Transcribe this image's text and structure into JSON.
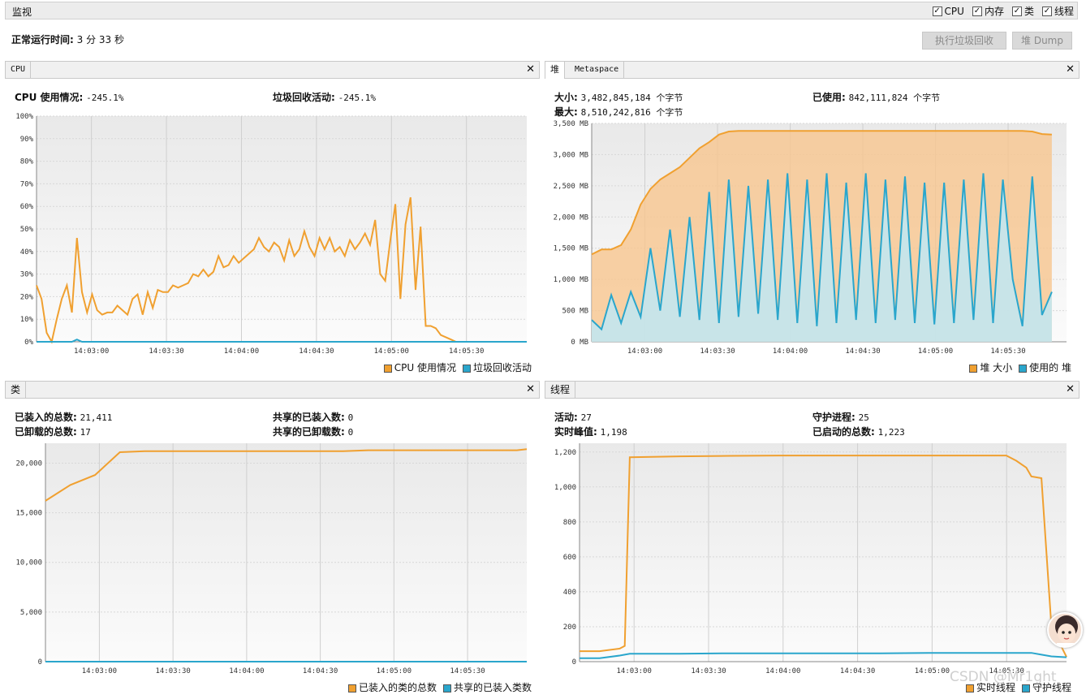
{
  "header": {
    "title": "监视",
    "checkboxes": [
      {
        "label": "CPU",
        "checked": true
      },
      {
        "label": "内存",
        "checked": true
      },
      {
        "label": "类",
        "checked": true
      },
      {
        "label": "线程",
        "checked": true
      }
    ]
  },
  "uptime": {
    "label": "正常运行时间:",
    "value": "3 分 33 秒"
  },
  "buttons": {
    "gc": "执行垃圾回收",
    "dump": "堆 Dump"
  },
  "colors": {
    "orange": "#f0a030",
    "blue": "#2aa6cc",
    "orange_fill": "#f7c58f",
    "blue_fill": "#bfe7f5"
  },
  "cpu": {
    "tab": "CPU",
    "usage_label": "CPU 使用情况:",
    "usage_value": "-245.1%",
    "gc_label": "垃圾回收活动:",
    "gc_value": "-245.1%",
    "y_ticks": [
      "0%",
      "10%",
      "20%",
      "30%",
      "40%",
      "50%",
      "60%",
      "70%",
      "80%",
      "90%",
      "100%"
    ],
    "x_ticks": [
      "14:03:00",
      "14:03:30",
      "14:04:00",
      "14:04:30",
      "14:05:00",
      "14:05:30"
    ],
    "legend": [
      "CPU 使用情况",
      "垃圾回收活动"
    ]
  },
  "heap": {
    "tab": "堆",
    "tab2": "Metaspace",
    "size_label": "大小:",
    "size_value": "3,482,845,184 个字节",
    "used_label": "已使用:",
    "used_value": "842,111,824 个字节",
    "max_label": "最大:",
    "max_value": "8,510,242,816 个字节",
    "y_ticks": [
      "0 MB",
      "500 MB",
      "1,000 MB",
      "1,500 MB",
      "2,000 MB",
      "2,500 MB",
      "3,000 MB",
      "3,500 MB"
    ],
    "x_ticks": [
      "14:03:00",
      "14:03:30",
      "14:04:00",
      "14:04:30",
      "14:05:00",
      "14:05:30"
    ],
    "legend": [
      "堆 大小",
      "使用的 堆"
    ]
  },
  "classes": {
    "tab": "类",
    "loaded_label": "已装入的总数:",
    "loaded_value": "21,411",
    "unloaded_label": "已卸载的总数:",
    "unloaded_value": "17",
    "shared_loaded_label": "共享的已装入数:",
    "shared_loaded_value": "0",
    "shared_unloaded_label": "共享的已卸载数:",
    "shared_unloaded_value": "0",
    "y_ticks": [
      "0",
      "5,000",
      "10,000",
      "15,000",
      "20,000"
    ],
    "x_ticks": [
      "14:03:00",
      "14:03:30",
      "14:04:00",
      "14:04:30",
      "14:05:00",
      "14:05:30"
    ],
    "legend": [
      "已装入的类的总数",
      "共享的已装入类数"
    ]
  },
  "threads": {
    "tab": "线程",
    "live_label": "活动:",
    "live_value": "27",
    "daemon_label": "守护进程:",
    "daemon_value": "25",
    "peak_label": "实时峰值:",
    "peak_value": "1,198",
    "started_label": "已启动的总数:",
    "started_value": "1,223",
    "y_ticks": [
      "0",
      "200",
      "400",
      "600",
      "800",
      "1,000",
      "1,200"
    ],
    "x_ticks": [
      "14:03:00",
      "14:03:30",
      "14:04:00",
      "14:04:30",
      "14:05:00",
      "14:05:30"
    ],
    "legend": [
      "实时线程",
      "守护线程"
    ]
  },
  "watermark": "CSDN @Mr1ght",
  "chart_data": [
    {
      "type": "line",
      "title": "CPU",
      "x": [
        0,
        2,
        4,
        6,
        8,
        10,
        12,
        14,
        16,
        18,
        20,
        22,
        24,
        26,
        28,
        30,
        32,
        34,
        36,
        38,
        40,
        42,
        44,
        46,
        48,
        50,
        52,
        54,
        56,
        58,
        60,
        62,
        64,
        66,
        68,
        70,
        72,
        74,
        76,
        78,
        80,
        82,
        84,
        86,
        88,
        90,
        92,
        94,
        96,
        98,
        100,
        102,
        104,
        106,
        108,
        110,
        112,
        114,
        116,
        118,
        120,
        122,
        124,
        126,
        128,
        130,
        132,
        134,
        136,
        138,
        140,
        142,
        144,
        146,
        148,
        150,
        152,
        154,
        156,
        158,
        160,
        162,
        164,
        166,
        168,
        170,
        172,
        174,
        176,
        178,
        180,
        182,
        184,
        186,
        188,
        190,
        192,
        194
      ],
      "series": [
        {
          "name": "CPU 使用情况",
          "values": [
            25,
            19,
            4,
            0,
            10,
            19,
            25,
            13,
            46,
            22,
            13,
            21,
            14,
            12,
            13,
            13,
            16,
            14,
            12,
            19,
            21,
            12,
            22,
            15,
            23,
            22,
            22,
            25,
            24,
            25,
            26,
            30,
            29,
            32,
            29,
            31,
            38,
            33,
            34,
            38,
            35,
            37,
            39,
            41,
            46,
            42,
            40,
            44,
            42,
            36,
            45,
            38,
            41,
            49,
            42,
            38,
            46,
            41,
            46,
            40,
            42,
            38,
            45,
            41,
            44,
            48,
            43,
            54,
            30,
            27,
            45,
            61,
            19,
            52,
            64,
            23,
            51,
            7,
            7,
            6,
            3,
            2,
            1,
            0,
            0,
            0,
            0,
            0,
            0,
            0,
            0,
            0,
            0,
            0,
            0,
            0,
            0,
            0
          ]
        },
        {
          "name": "垃圾回收活动",
          "values": [
            0,
            0,
            0,
            0,
            0,
            0,
            0,
            0,
            1,
            0,
            0,
            0,
            0,
            0,
            0,
            0,
            0,
            0,
            0,
            0,
            0,
            0,
            0,
            0,
            0,
            0,
            0,
            0,
            0,
            0,
            0,
            0,
            0,
            0,
            0,
            0,
            0,
            0,
            0,
            0,
            0,
            0,
            0,
            0,
            0,
            0,
            0,
            0,
            0,
            0,
            0,
            0,
            0,
            0,
            0,
            0,
            0,
            0,
            0,
            0,
            0,
            0,
            0,
            0,
            0,
            0,
            0,
            0,
            0,
            0,
            0,
            0,
            0,
            0,
            0,
            0,
            0,
            0,
            0,
            0,
            0,
            0,
            0,
            0,
            0,
            0,
            0,
            0,
            0,
            0,
            0,
            0,
            0,
            0,
            0,
            0,
            0,
            0
          ]
        }
      ],
      "ylim": [
        0,
        100
      ]
    },
    {
      "type": "area",
      "title": "堆",
      "x": [
        0,
        4,
        8,
        12,
        16,
        20,
        24,
        28,
        32,
        36,
        40,
        44,
        48,
        52,
        56,
        60,
        64,
        68,
        72,
        76,
        80,
        84,
        88,
        92,
        96,
        100,
        104,
        108,
        112,
        116,
        120,
        124,
        128,
        132,
        136,
        140,
        144,
        148,
        152,
        156,
        160,
        164,
        168,
        172,
        176,
        180,
        184,
        188
      ],
      "series": [
        {
          "name": "堆 大小",
          "values": [
            1400,
            1480,
            1480,
            1550,
            1800,
            2200,
            2450,
            2600,
            2700,
            2800,
            2950,
            3100,
            3200,
            3320,
            3370,
            3380,
            3380,
            3380,
            3380,
            3380,
            3380,
            3380,
            3380,
            3380,
            3380,
            3380,
            3380,
            3380,
            3380,
            3380,
            3380,
            3380,
            3380,
            3380,
            3380,
            3380,
            3380,
            3380,
            3380,
            3380,
            3380,
            3380,
            3380,
            3380,
            3380,
            3370,
            3330,
            3320
          ]
        },
        {
          "name": "使用的 堆",
          "values": [
            350,
            200,
            750,
            300,
            800,
            400,
            1500,
            500,
            1800,
            400,
            2000,
            350,
            2400,
            300,
            2600,
            400,
            2500,
            450,
            2600,
            350,
            2700,
            300,
            2600,
            250,
            2700,
            300,
            2550,
            350,
            2700,
            300,
            2600,
            350,
            2650,
            300,
            2550,
            280,
            2550,
            300,
            2600,
            350,
            2700,
            300,
            2600,
            1000,
            250,
            2650,
            430,
            800
          ]
        }
      ],
      "ylim": [
        0,
        3500
      ]
    },
    {
      "type": "line",
      "title": "类",
      "x": [
        0,
        10,
        20,
        30,
        40,
        50,
        60,
        70,
        80,
        90,
        100,
        110,
        120,
        130,
        140,
        150,
        160,
        170,
        180,
        190,
        194
      ],
      "series": [
        {
          "name": "已装入的类的总数",
          "values": [
            16200,
            17800,
            18800,
            21100,
            21200,
            21200,
            21200,
            21200,
            21200,
            21200,
            21200,
            21200,
            21200,
            21300,
            21300,
            21300,
            21300,
            21300,
            21300,
            21300,
            21411
          ]
        },
        {
          "name": "共享的已装入类数",
          "values": [
            0,
            0,
            0,
            0,
            0,
            0,
            0,
            0,
            0,
            0,
            0,
            0,
            0,
            0,
            0,
            0,
            0,
            0,
            0,
            0,
            0
          ]
        }
      ],
      "ylim": [
        0,
        22000
      ]
    },
    {
      "type": "line",
      "title": "线程",
      "x": [
        0,
        8,
        16,
        18,
        20,
        40,
        60,
        80,
        100,
        120,
        140,
        160,
        170,
        174,
        178,
        180,
        184,
        188,
        194
      ],
      "series": [
        {
          "name": "实时线程",
          "values": [
            60,
            60,
            75,
            90,
            1170,
            1175,
            1178,
            1180,
            1180,
            1180,
            1180,
            1180,
            1180,
            1150,
            1110,
            1060,
            1050,
            200,
            27
          ]
        },
        {
          "name": "守护线程",
          "values": [
            20,
            20,
            35,
            40,
            45,
            45,
            48,
            48,
            48,
            48,
            50,
            50,
            50,
            50,
            50,
            50,
            40,
            30,
            25
          ]
        }
      ],
      "ylim": [
        0,
        1250
      ]
    }
  ]
}
